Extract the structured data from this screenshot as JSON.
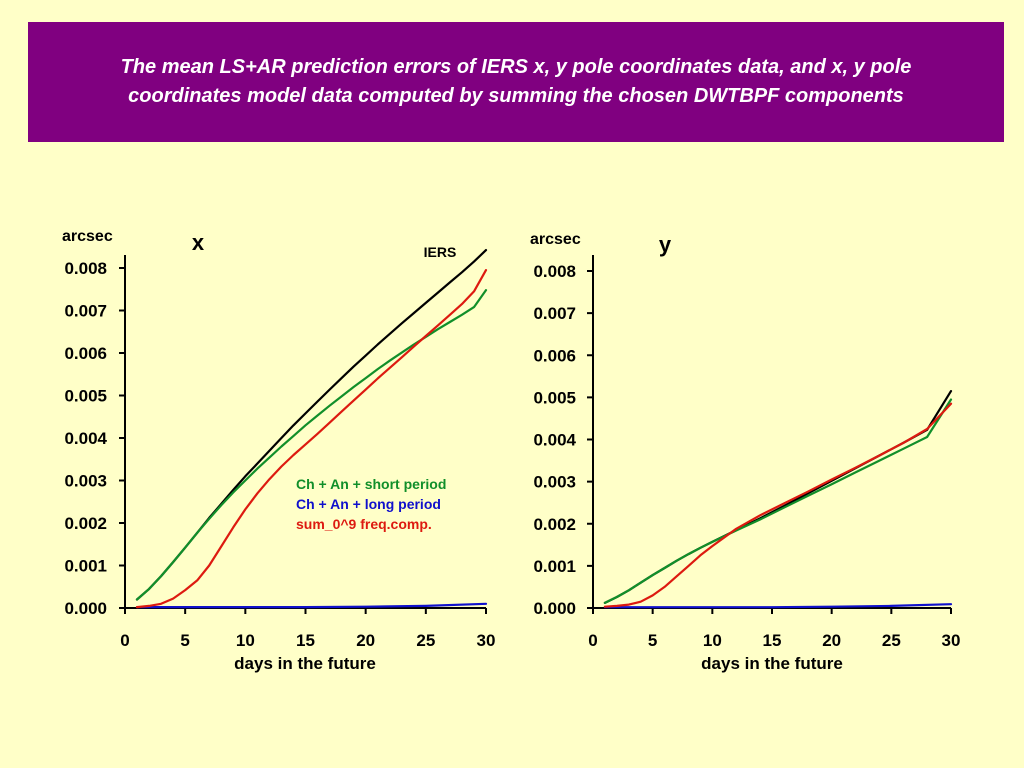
{
  "slide": {
    "title_line1": "The mean LS+AR prediction errors of IERS x, y pole coordinates data, and x, y pole",
    "title_line2": "coordinates model data computed by summing the chosen DWTBPF components",
    "title_bg": "#800080",
    "background": "#ffffc8"
  },
  "chart_data": [
    {
      "type": "line",
      "panel_label": "x",
      "ylabel": "arcsec",
      "xlabel": "days in the future",
      "xlim": [
        0,
        30
      ],
      "ylim": [
        0,
        0.008
      ],
      "x_ticks": [
        "0",
        "5",
        "10",
        "15",
        "20",
        "25",
        "30"
      ],
      "y_ticks": [
        "0.000",
        "0.001",
        "0.002",
        "0.003",
        "0.004",
        "0.005",
        "0.006",
        "0.007",
        "0.008"
      ],
      "grid": false,
      "series_labels": [
        {
          "text": "IERS",
          "color": "#000000"
        },
        {
          "text": "Ch + An + short period",
          "color": "#118f2a"
        },
        {
          "text": "Ch + An + long period",
          "color": "#1010cc"
        },
        {
          "text": "sum_0^9 freq.comp.",
          "color": "#dd1a10"
        }
      ],
      "series": [
        {
          "color": "#000000",
          "x": [
            1,
            2,
            3,
            4,
            5,
            6,
            7,
            8,
            9,
            10,
            11,
            12,
            13,
            14,
            15,
            16,
            17,
            18,
            19,
            20,
            21,
            22,
            23,
            24,
            25,
            26,
            27,
            28,
            29,
            30
          ],
          "y": [
            0.0002,
            0.00045,
            0.00075,
            0.00108,
            0.00142,
            0.00177,
            0.00212,
            0.00245,
            0.00278,
            0.0031,
            0.0034,
            0.0037,
            0.004,
            0.0043,
            0.00458,
            0.00486,
            0.00514,
            0.00541,
            0.00568,
            0.00594,
            0.0062,
            0.00645,
            0.0067,
            0.00694,
            0.00718,
            0.00742,
            0.00766,
            0.0079,
            0.00815,
            0.00842
          ]
        },
        {
          "color": "#118f2a",
          "x": [
            1,
            2,
            3,
            4,
            5,
            6,
            7,
            8,
            9,
            10,
            11,
            12,
            13,
            14,
            15,
            16,
            17,
            18,
            19,
            20,
            21,
            22,
            23,
            24,
            25,
            26,
            27,
            28,
            29,
            30
          ],
          "y": [
            0.0002,
            0.00045,
            0.00075,
            0.00108,
            0.00142,
            0.00177,
            0.0021,
            0.00242,
            0.00272,
            0.003,
            0.00328,
            0.00354,
            0.0038,
            0.00405,
            0.0043,
            0.00453,
            0.00476,
            0.00498,
            0.0052,
            0.00541,
            0.00562,
            0.00582,
            0.00601,
            0.0062,
            0.00638,
            0.00656,
            0.00673,
            0.0069,
            0.00708,
            0.00748
          ]
        },
        {
          "color": "#1010cc",
          "x": [
            1,
            5,
            10,
            15,
            20,
            25,
            30
          ],
          "y": [
            2e-05,
            2e-05,
            2e-05,
            2e-05,
            3e-05,
            5e-05,
            0.0001
          ]
        },
        {
          "color": "#dd1a10",
          "x": [
            1,
            2,
            3,
            4,
            5,
            6,
            7,
            8,
            9,
            10,
            11,
            12,
            13,
            14,
            15,
            16,
            17,
            18,
            19,
            20,
            21,
            22,
            23,
            24,
            25,
            26,
            27,
            28,
            29,
            30
          ],
          "y": [
            2e-05,
            5e-05,
            0.0001,
            0.00022,
            0.00042,
            0.00065,
            0.001,
            0.00145,
            0.0019,
            0.00232,
            0.0027,
            0.00303,
            0.00333,
            0.0036,
            0.00385,
            0.0041,
            0.00436,
            0.00462,
            0.00488,
            0.00514,
            0.0054,
            0.00565,
            0.0059,
            0.00615,
            0.0064,
            0.00665,
            0.0069,
            0.00715,
            0.00745,
            0.00795
          ]
        }
      ]
    },
    {
      "type": "line",
      "panel_label": "y",
      "ylabel": "arcsec",
      "xlabel": "days in the future",
      "xlim": [
        0,
        30
      ],
      "ylim": [
        0,
        0.008
      ],
      "x_ticks": [
        "0",
        "5",
        "10",
        "15",
        "20",
        "25",
        "30"
      ],
      "y_ticks": [
        "0.000",
        "0.001",
        "0.002",
        "0.003",
        "0.004",
        "0.005",
        "0.006",
        "0.007",
        "0.008"
      ],
      "grid": false,
      "series": [
        {
          "color": "#000000",
          "x": [
            1,
            2,
            3,
            4,
            5,
            6,
            7,
            8,
            9,
            10,
            12,
            14,
            16,
            18,
            20,
            22,
            24,
            26,
            28,
            30
          ],
          "y": [
            0.00012,
            0.00026,
            0.00042,
            0.0006,
            0.00078,
            0.00095,
            0.00112,
            0.00128,
            0.00143,
            0.00157,
            0.00185,
            0.00213,
            0.00242,
            0.00272,
            0.00302,
            0.00332,
            0.00362,
            0.00392,
            0.00423,
            0.00515
          ]
        },
        {
          "color": "#118f2a",
          "x": [
            1,
            2,
            3,
            4,
            5,
            6,
            7,
            8,
            9,
            10,
            12,
            14,
            16,
            18,
            20,
            22,
            24,
            26,
            28,
            30
          ],
          "y": [
            0.00012,
            0.00026,
            0.00042,
            0.0006,
            0.00078,
            0.00095,
            0.00112,
            0.00128,
            0.00143,
            0.00157,
            0.00184,
            0.0021,
            0.00238,
            0.00266,
            0.00294,
            0.00322,
            0.0035,
            0.00378,
            0.00406,
            0.00495
          ]
        },
        {
          "color": "#1010cc",
          "x": [
            1,
            5,
            10,
            15,
            20,
            25,
            30
          ],
          "y": [
            2e-05,
            2e-05,
            2e-05,
            2e-05,
            3e-05,
            5e-05,
            9e-05
          ]
        },
        {
          "color": "#dd1a10",
          "x": [
            1,
            2,
            3,
            4,
            5,
            6,
            7,
            8,
            9,
            10,
            12,
            14,
            16,
            18,
            20,
            22,
            24,
            26,
            28,
            30
          ],
          "y": [
            3e-05,
            5e-05,
            8e-05,
            0.00015,
            0.0003,
            0.0005,
            0.00075,
            0.001,
            0.00125,
            0.00147,
            0.00188,
            0.0022,
            0.00248,
            0.00276,
            0.00305,
            0.00333,
            0.00362,
            0.00392,
            0.00425,
            0.00485
          ]
        }
      ]
    }
  ]
}
